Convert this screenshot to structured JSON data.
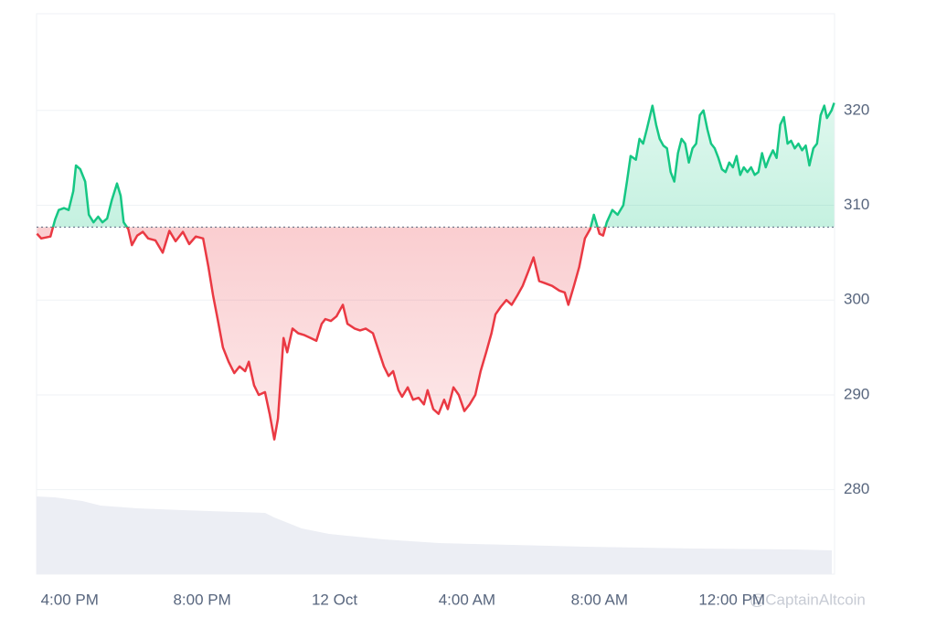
{
  "chart_data": {
    "type": "line",
    "x": [
      -8.99,
      -8.86,
      -8.58,
      -8.44,
      -8.33,
      -8.17,
      -8.03,
      -7.89,
      -7.81,
      -7.68,
      -7.53,
      -7.42,
      -7.28,
      -7.14,
      -7.01,
      -6.87,
      -6.73,
      -6.57,
      -6.46,
      -6.37,
      -6.23,
      -6.12,
      -5.96,
      -5.79,
      -5.63,
      -5.41,
      -5.19,
      -4.99,
      -4.8,
      -4.58,
      -4.39,
      -4.19,
      -3.97,
      -3.81,
      -3.67,
      -3.53,
      -3.37,
      -3.2,
      -3.03,
      -2.87,
      -2.7,
      -2.59,
      -2.43,
      -2.29,
      -2.1,
      -1.96,
      -1.82,
      -1.71,
      -1.54,
      -1.43,
      -1.27,
      -1.1,
      -0.91,
      -0.72,
      -0.55,
      -0.39,
      -0.28,
      -0.11,
      0.06,
      0.25,
      0.39,
      0.61,
      0.77,
      0.94,
      1.16,
      1.32,
      1.49,
      1.63,
      1.77,
      1.93,
      2.04,
      2.21,
      2.37,
      2.54,
      2.7,
      2.81,
      2.98,
      3.14,
      3.31,
      3.42,
      3.59,
      3.75,
      3.92,
      4.08,
      4.25,
      4.41,
      4.58,
      4.74,
      4.86,
      5.02,
      5.19,
      5.35,
      5.52,
      5.68,
      5.85,
      6.01,
      6.18,
      6.34,
      6.57,
      6.79,
      6.95,
      7.06,
      7.23,
      7.39,
      7.56,
      7.72,
      7.83,
      8.0,
      8.11,
      8.22,
      8.39,
      8.55,
      8.72,
      8.83,
      8.94,
      9.1,
      9.21,
      9.32,
      9.43,
      9.6,
      9.71,
      9.82,
      9.93,
      10.04,
      10.15,
      10.26,
      10.37,
      10.48,
      10.59,
      10.7,
      10.81,
      10.92,
      11.03,
      11.14,
      11.26,
      11.37,
      11.48,
      11.59,
      11.7,
      11.81,
      11.92,
      12.03,
      12.14,
      12.25,
      12.36,
      12.47,
      12.58,
      12.69,
      12.8,
      12.91,
      13.02,
      13.13,
      13.24,
      13.35,
      13.46,
      13.57,
      13.68,
      13.79,
      13.9,
      14.01,
      14.12,
      14.23,
      14.34,
      14.46,
      14.57,
      14.68,
      14.79,
      14.87,
      15.01,
      15.09
    ],
    "values": [
      307.0,
      306.5,
      306.7,
      308.5,
      309.5,
      309.7,
      309.5,
      311.5,
      314.2,
      313.8,
      312.5,
      309.0,
      308.2,
      308.8,
      308.2,
      308.6,
      310.5,
      312.3,
      311.0,
      308.2,
      307.5,
      305.8,
      306.8,
      307.2,
      306.5,
      306.3,
      305.0,
      307.3,
      306.2,
      307.2,
      305.9,
      306.7,
      306.5,
      303.5,
      300.5,
      298.0,
      295.0,
      293.5,
      292.3,
      293.0,
      292.5,
      293.5,
      291.0,
      290.0,
      290.3,
      288.0,
      285.3,
      287.5,
      296.0,
      294.5,
      297.0,
      296.5,
      296.3,
      296.0,
      295.7,
      297.5,
      298.0,
      297.8,
      298.3,
      299.5,
      297.5,
      297.0,
      296.8,
      297.0,
      296.5,
      294.8,
      293.0,
      292.0,
      292.5,
      290.5,
      289.8,
      290.8,
      289.5,
      289.7,
      289.0,
      290.5,
      288.5,
      288.0,
      289.5,
      288.5,
      290.8,
      290.0,
      288.3,
      289.0,
      290.0,
      292.5,
      294.5,
      296.5,
      298.5,
      299.3,
      300.0,
      299.5,
      300.5,
      301.5,
      303.0,
      304.5,
      302.0,
      301.8,
      301.5,
      301.0,
      300.8,
      299.5,
      301.5,
      303.5,
      306.5,
      307.5,
      309.0,
      307.0,
      306.8,
      308.2,
      309.5,
      309.0,
      310.0,
      312.5,
      315.2,
      314.8,
      317.0,
      316.5,
      318.0,
      320.5,
      318.5,
      317.0,
      316.3,
      316.0,
      313.5,
      312.5,
      315.5,
      317.0,
      316.5,
      314.5,
      316.0,
      316.5,
      319.5,
      320.0,
      318.0,
      316.5,
      316.0,
      315.0,
      313.8,
      313.5,
      314.5,
      314.0,
      315.2,
      313.2,
      314.0,
      313.5,
      314.0,
      313.2,
      313.5,
      315.5,
      314.0,
      315.0,
      315.8,
      315.0,
      318.5,
      319.3,
      316.5,
      316.8,
      316.0,
      316.5,
      315.8,
      316.3,
      314.2,
      316.0,
      316.5,
      319.5,
      320.5,
      319.2,
      320.0,
      320.8
    ],
    "baseline": 307.7,
    "up_color": "#16c784",
    "down_color": "#ea3943",
    "xlim": [
      -9,
      15.1
    ],
    "xticks": [
      {
        "value": -8,
        "label": "4:00 PM"
      },
      {
        "value": -4,
        "label": "8:00 PM"
      },
      {
        "value": 0,
        "label": "12 Oct"
      },
      {
        "value": 4,
        "label": "4:00 AM"
      },
      {
        "value": 8,
        "label": "8:00 AM"
      },
      {
        "value": 12,
        "label": "12:00 PM"
      }
    ],
    "ylim": [
      271.1,
      330.2
    ],
    "yticks": [
      280,
      290,
      300,
      310,
      320
    ],
    "grid": true,
    "watermark": "@CaptainAltcoin"
  }
}
